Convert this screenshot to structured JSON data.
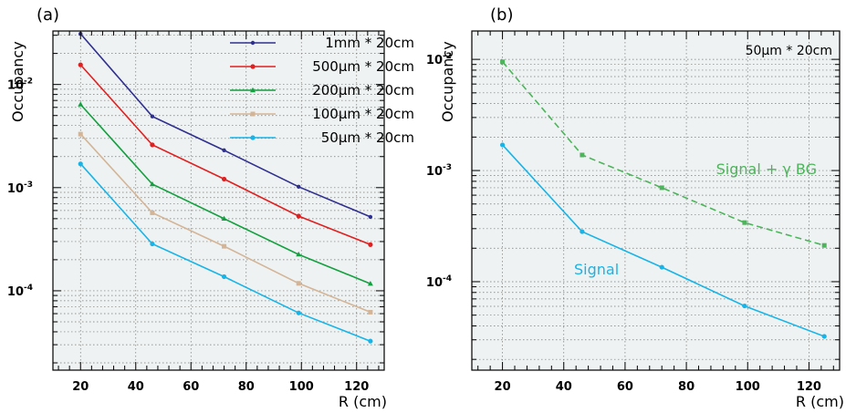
{
  "figure": {
    "panels": [
      {
        "label": "(a)",
        "ylabel": "Occupancy",
        "xlabel": "R (cm)",
        "note": "",
        "yticks": [
          {
            "value": 0.01,
            "base": "10",
            "exp": "-2"
          },
          {
            "value": 0.001,
            "base": "10",
            "exp": "-3"
          },
          {
            "value": 0.0001,
            "base": "10",
            "exp": "-4"
          }
        ],
        "xticks": [
          "20",
          "40",
          "60",
          "80",
          "100",
          "120"
        ]
      },
      {
        "label": "(b)",
        "ylabel": "Occupancy",
        "xlabel": "R (cm)",
        "note": "50μm * 20cm",
        "yticks": [
          {
            "value": 0.01,
            "base": "10",
            "exp": "-2"
          },
          {
            "value": 0.001,
            "base": "10",
            "exp": "-3"
          },
          {
            "value": 0.0001,
            "base": "10",
            "exp": "-4"
          }
        ],
        "xticks": [
          "20",
          "40",
          "60",
          "80",
          "100",
          "120"
        ]
      }
    ]
  },
  "chart_data": [
    {
      "type": "line",
      "title": "(a)",
      "xlabel": "R (cm)",
      "ylabel": "Occupancy",
      "yscale": "log",
      "xlim": [
        10,
        130
      ],
      "ylim": [
        1.7e-05,
        0.033
      ],
      "grid": true,
      "legend": "top-right",
      "x": [
        20,
        46,
        72,
        99,
        125
      ],
      "series": [
        {
          "name": "1mm * 20cm",
          "color": "#2f2f8f",
          "marker": "cross",
          "values": [
            0.031,
            0.0049,
            0.0023,
            0.00102,
            0.00052
          ]
        },
        {
          "name": "500μm * 20cm",
          "color": "#e02020",
          "marker": "circle",
          "values": [
            0.0155,
            0.0026,
            0.00121,
            0.00053,
            0.00028
          ]
        },
        {
          "name": "200μm * 20cm",
          "color": "#14a040",
          "marker": "triangle",
          "values": [
            0.0064,
            0.00108,
            0.0005,
            0.000225,
            0.000117
          ]
        },
        {
          "name": "100μm * 20cm",
          "color": "#d4b496",
          "marker": "square",
          "values": [
            0.0033,
            0.00057,
            0.00027,
            0.000118,
            6.2e-05
          ]
        },
        {
          "name": "50μm * 20cm",
          "color": "#18b4e8",
          "marker": "circle",
          "values": [
            0.0017,
            0.000285,
            0.000137,
            6.1e-05,
            3.25e-05
          ]
        }
      ]
    },
    {
      "type": "line",
      "title": "(b)",
      "xlabel": "R (cm)",
      "ylabel": "Occupancy",
      "yscale": "log",
      "xlim": [
        10,
        130
      ],
      "ylim": [
        1.6e-05,
        0.018
      ],
      "grid": true,
      "legend": "none",
      "x": [
        20,
        46,
        72,
        99,
        125
      ],
      "series": [
        {
          "name": "Signal + γ BG",
          "color": "#4cb45a",
          "marker": "square",
          "dashed": true,
          "values": [
            0.0095,
            0.00138,
            0.0007,
            0.00034,
            0.000212
          ]
        },
        {
          "name": "Signal",
          "color": "#18b4e8",
          "marker": "circle",
          "dashed": false,
          "values": [
            0.0017,
            0.000282,
            0.000135,
            6.05e-05,
            3.22e-05
          ]
        }
      ],
      "annotations": [
        {
          "text": "Signal + γ BG",
          "series": 0
        },
        {
          "text": "Signal",
          "series": 1
        }
      ]
    }
  ]
}
